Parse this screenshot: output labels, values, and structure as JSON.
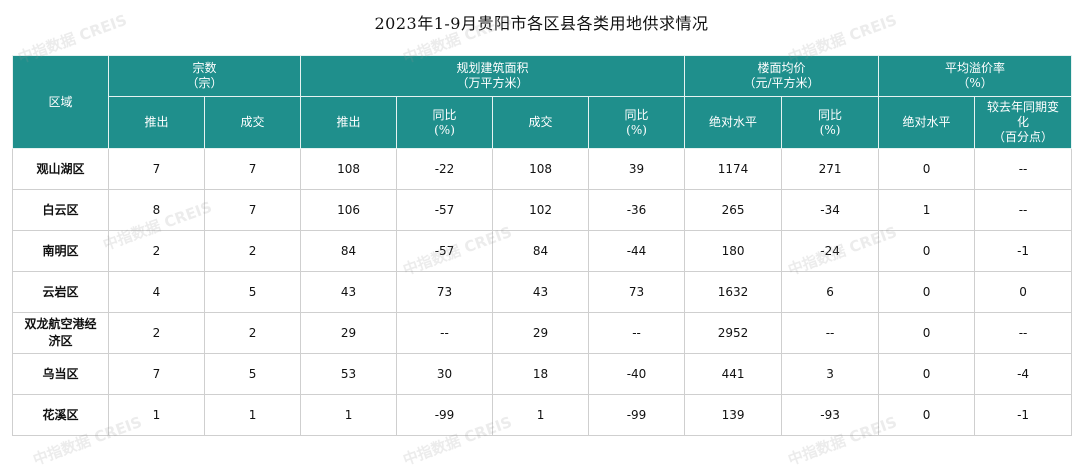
{
  "title": "2023年1-9月贵阳市各区县各类用地供求情况",
  "header": {
    "region": "区域",
    "groups": [
      {
        "label": "宗数\n（宗）"
      },
      {
        "label": "规划建筑面积\n（万平方米）"
      },
      {
        "label": "楼面均价\n（元/平方米）"
      },
      {
        "label": "平均溢价率\n（%）"
      }
    ],
    "subs": [
      "推出",
      "成交",
      "推出",
      "同比\n(%)",
      "成交",
      "同比\n(%)",
      "绝对水平",
      "同比\n(%)",
      "绝对水平",
      "较去年同期变\n化\n（百分点）"
    ]
  },
  "rows": [
    {
      "region": "观山湖区",
      "cells": [
        "7",
        "7",
        "108",
        "-22",
        "108",
        "39",
        "1174",
        "271",
        "0",
        "--"
      ]
    },
    {
      "region": "白云区",
      "cells": [
        "8",
        "7",
        "106",
        "-57",
        "102",
        "-36",
        "265",
        "-34",
        "1",
        "--"
      ]
    },
    {
      "region": "南明区",
      "cells": [
        "2",
        "2",
        "84",
        "-57",
        "84",
        "-44",
        "180",
        "-24",
        "0",
        "-1"
      ]
    },
    {
      "region": "云岩区",
      "cells": [
        "4",
        "5",
        "43",
        "73",
        "43",
        "73",
        "1632",
        "6",
        "0",
        "0"
      ]
    },
    {
      "region": "双龙航空港经\n济区",
      "cells": [
        "2",
        "2",
        "29",
        "--",
        "29",
        "--",
        "2952",
        "--",
        "0",
        "--"
      ]
    },
    {
      "region": "乌当区",
      "cells": [
        "7",
        "5",
        "53",
        "30",
        "18",
        "-40",
        "441",
        "3",
        "0",
        "-4"
      ]
    },
    {
      "region": "花溪区",
      "cells": [
        "1",
        "1",
        "1",
        "-99",
        "1",
        "-99",
        "139",
        "-93",
        "0",
        "-1"
      ]
    }
  ],
  "watermark": "中指数据 CREIS"
}
